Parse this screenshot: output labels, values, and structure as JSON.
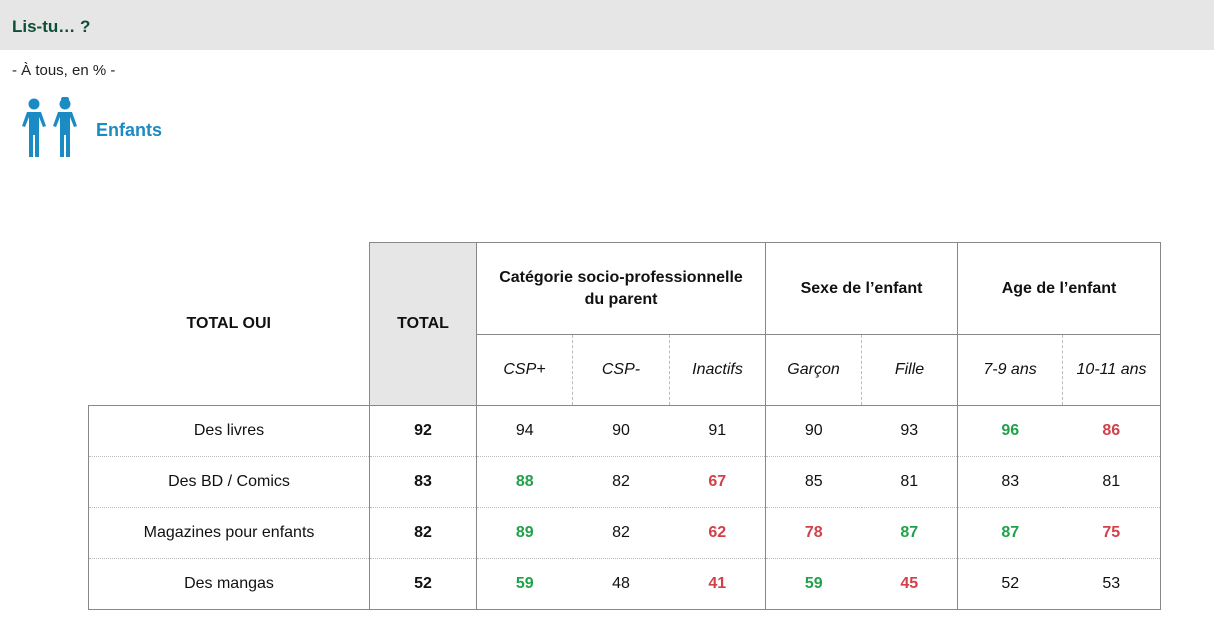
{
  "header": {
    "title": "Lis-tu… ?"
  },
  "subtitle": "- À tous, en % -",
  "section": {
    "label": "Enfants",
    "icon": "children-icon",
    "icon_color": "#1b8bc4"
  },
  "colors": {
    "green": "#21a24a",
    "red": "#d2404a",
    "dark_green": "#0d4f34",
    "header_gray": "#e6e6e6"
  },
  "table": {
    "corner_label": "TOTAL OUI",
    "total_label": "TOTAL",
    "groups": [
      {
        "label_line1": "Catégorie socio-professionnelle",
        "label_line2": "du parent",
        "columns": [
          "CSP+",
          "CSP-",
          "Inactifs"
        ]
      },
      {
        "label_line1": "Sexe de l’enfant",
        "label_line2": "",
        "columns": [
          "Garçon",
          "Fille"
        ]
      },
      {
        "label_line1": "Age de l’enfant",
        "label_line2": "",
        "columns": [
          "7-9 ans",
          "10-11 ans"
        ]
      }
    ],
    "rows": [
      {
        "label": "Des livres",
        "total": "92",
        "values": [
          "94",
          "90",
          "91",
          "90",
          "93",
          "96",
          "86"
        ],
        "flags": [
          "",
          "",
          "",
          "",
          "",
          "green",
          "red"
        ]
      },
      {
        "label": "Des BD / Comics",
        "total": "83",
        "values": [
          "88",
          "82",
          "67",
          "85",
          "81",
          "83",
          "81"
        ],
        "flags": [
          "green",
          "",
          "red",
          "",
          "",
          "",
          ""
        ]
      },
      {
        "label": "Magazines pour enfants",
        "total": "82",
        "values": [
          "89",
          "82",
          "62",
          "78",
          "87",
          "87",
          "75"
        ],
        "flags": [
          "green",
          "",
          "red",
          "red",
          "green",
          "green",
          "red"
        ]
      },
      {
        "label": "Des mangas",
        "total": "52",
        "values": [
          "59",
          "48",
          "41",
          "59",
          "45",
          "52",
          "53"
        ],
        "flags": [
          "green",
          "",
          "red",
          "green",
          "red",
          "",
          ""
        ]
      }
    ]
  }
}
